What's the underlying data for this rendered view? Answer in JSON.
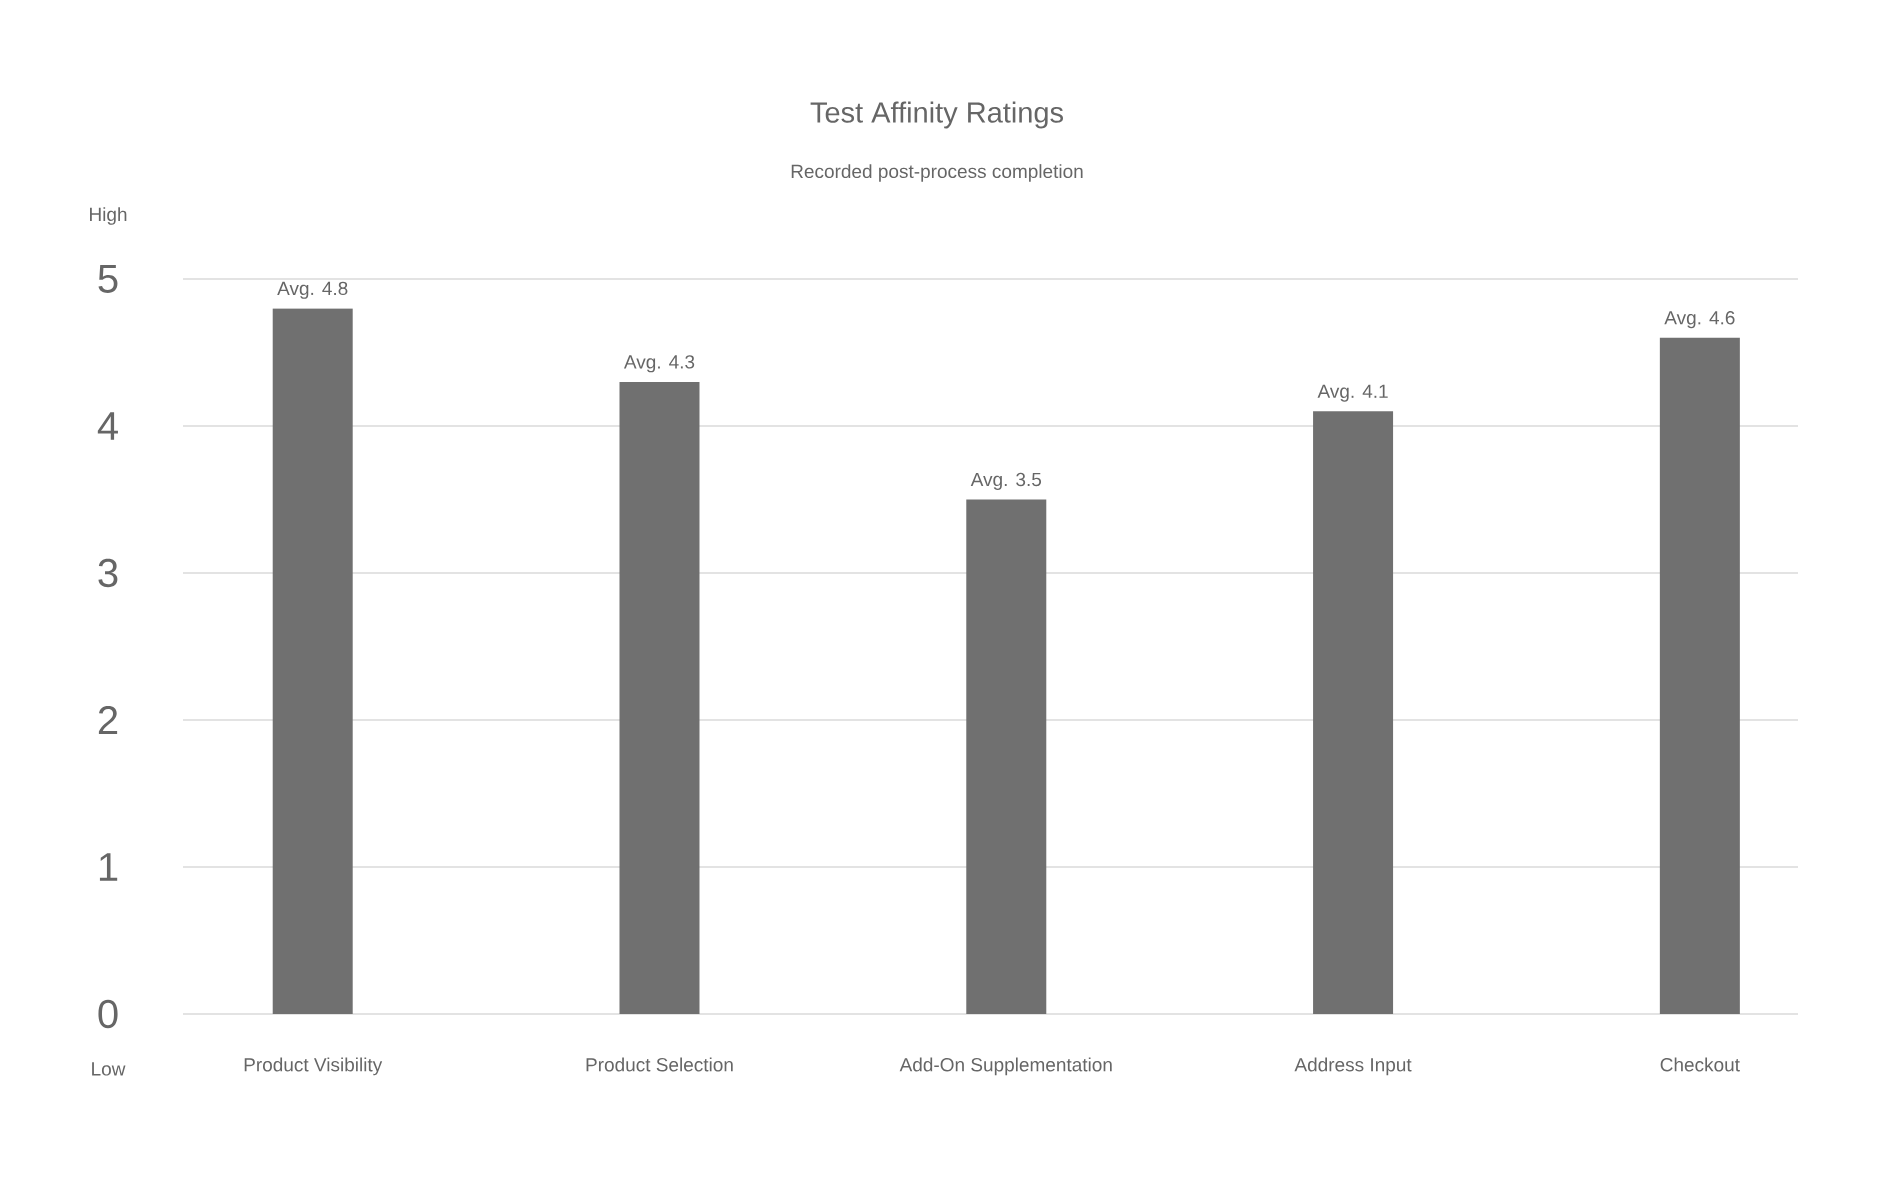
{
  "chart_data": {
    "type": "bar",
    "title": "Test Affinity Ratings",
    "subtitle": "Recorded post-process completion",
    "annotations": [
      "High",
      "Low"
    ],
    "categories": [
      "Product Visibility",
      "Product Selection",
      "Add-On Supplementation",
      "Address Input",
      "Checkout"
    ],
    "values": [
      4.8,
      4.3,
      3.5,
      4.1,
      4.6
    ],
    "value_labels": [
      "Avg. 4.8",
      "Avg. 4.3",
      "Avg. 3.5",
      "Avg. 4.1",
      "Avg. 4.6"
    ],
    "color": "#707070",
    "ylim": [
      0,
      5
    ],
    "yticks": [
      0,
      1,
      2,
      3,
      4,
      5
    ],
    "grid": "y"
  }
}
